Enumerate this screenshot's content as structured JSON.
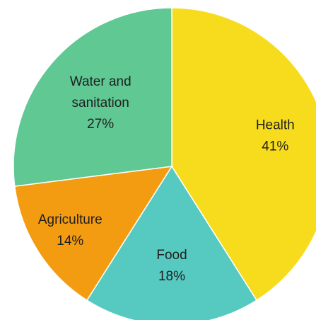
{
  "chart_data": {
    "type": "pie",
    "start_angle_deg": 0,
    "direction": "clockwise",
    "slices": [
      {
        "key": "health",
        "label_lines": [
          "Health"
        ],
        "percent_label": "41%",
        "value": 41,
        "color": "#F7DC1E"
      },
      {
        "key": "food",
        "label_lines": [
          "Food"
        ],
        "percent_label": "18%",
        "value": 18,
        "color": "#56CAC0"
      },
      {
        "key": "agriculture",
        "label_lines": [
          "Agriculture"
        ],
        "percent_label": "14%",
        "value": 14,
        "color": "#F39C12"
      },
      {
        "key": "water-and-sanitation",
        "label_lines": [
          "Water and",
          "sanitation"
        ],
        "percent_label": "27%",
        "value": 27,
        "color": "#5FC893"
      }
    ]
  }
}
